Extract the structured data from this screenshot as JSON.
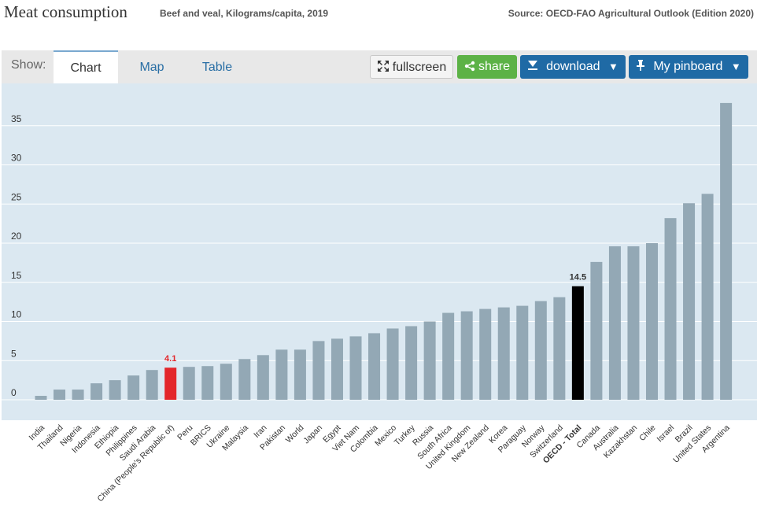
{
  "header": {
    "title": "Meat consumption",
    "subtitle": "Beef and veal, Kilograms/capita, 2019",
    "source": "Source: OECD-FAO Agricultural Outlook (Edition 2020)"
  },
  "toolbar": {
    "show_label": "Show:",
    "tabs": [
      {
        "label": "Chart",
        "active": true
      },
      {
        "label": "Map",
        "active": false
      },
      {
        "label": "Table",
        "active": false
      }
    ],
    "fullscreen_label": "fullscreen",
    "share_label": "share",
    "download_label": "download",
    "pinboard_label": "My pinboard",
    "dropdown_glyph": "▼",
    "icons": {
      "fullscreen": "fullscreen-icon",
      "share": "share-icon",
      "download": "download-icon",
      "pin": "pin-icon"
    }
  },
  "colors": {
    "default_bar": "#93a8b5",
    "highlight_bar": "#e3262a",
    "oecd_bar": "#000000",
    "plot_background": "#dbe8f1",
    "gridline": "#ffffff"
  },
  "chart_data": {
    "type": "bar",
    "title": "",
    "xlabel": "",
    "ylabel": "",
    "ylim": [
      0,
      39
    ],
    "yticks": [
      0,
      5,
      10,
      15,
      20,
      25,
      30,
      35
    ],
    "grid": true,
    "categories": [
      "India",
      "Thailand",
      "Nigeria",
      "Indonesia",
      "Ethiopia",
      "Philippines",
      "Saudi Arabia",
      "China (People's Republic of)",
      "Peru",
      "BRICS",
      "Ukraine",
      "Malaysia",
      "Iran",
      "Pakistan",
      "World",
      "Japan",
      "Egypt",
      "Viet Nam",
      "Colombia",
      "Mexico",
      "Turkey",
      "Russia",
      "South Africa",
      "United Kingdom",
      "New Zealand",
      "Korea",
      "Paraguay",
      "Norway",
      "Switzerland",
      "OECD - Total",
      "Canada",
      "Australia",
      "Kazakhstan",
      "Chile",
      "Israel",
      "Brazil",
      "United States",
      "Argentina"
    ],
    "values": [
      0.5,
      1.3,
      1.3,
      2.1,
      2.5,
      3.1,
      3.8,
      4.1,
      4.2,
      4.3,
      4.6,
      5.2,
      5.7,
      6.4,
      6.4,
      7.5,
      7.8,
      8.1,
      8.5,
      9.1,
      9.4,
      10.0,
      11.1,
      11.3,
      11.6,
      11.8,
      12.0,
      12.6,
      13.1,
      14.5,
      17.6,
      19.6,
      19.6,
      20.0,
      23.2,
      25.1,
      26.3,
      37.9
    ],
    "highlighted": {
      "China (People's Republic of)": "4.1",
      "OECD - Total": "14.5"
    },
    "legend": "none"
  }
}
